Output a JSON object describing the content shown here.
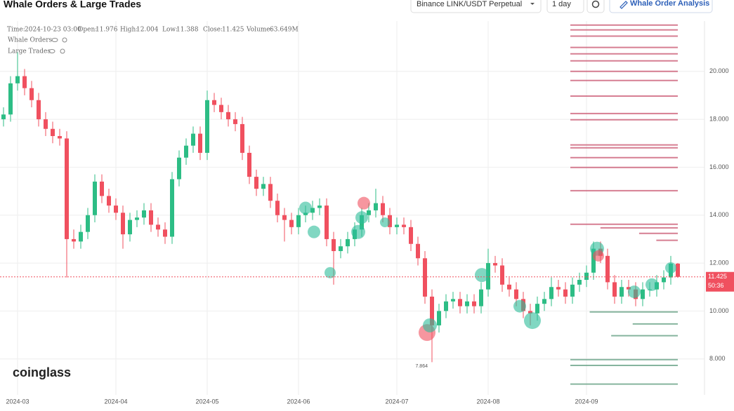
{
  "header": {
    "title": "Whale Orders & Large Trades",
    "exchange": "Binance LINK/USDT Perpetual",
    "interval": "1 day",
    "button": "Whale Order Analysis"
  },
  "chart_data": {
    "type": "candlestick",
    "info": {
      "time_label": "Time:",
      "time": "2024-10-23 03:00",
      "open_label": "Open:",
      "high_label": "High:",
      "low_label": "Low:",
      "close_label": "Close:",
      "volume_label": "Volume:",
      "volume": "63.649M"
    },
    "legend": [
      "Whale Orders",
      "Large Trades"
    ],
    "watermark": "coinglass",
    "countdown": "50:36",
    "up_color": "#2dbd85",
    "down_color": "#f0505f",
    "last_price_color": "#f0505f",
    "categories": [
      null,
      null,
      "2024-03",
      null,
      null,
      null,
      null,
      null,
      null,
      null,
      null,
      null,
      null,
      null,
      null,
      null,
      "2024-04",
      null,
      null,
      null,
      null,
      null,
      null,
      null,
      null,
      null,
      null,
      null,
      null,
      "2024-05",
      null,
      null,
      null,
      null,
      null,
      null,
      null,
      null,
      null,
      null,
      null,
      null,
      "2024-06",
      null,
      null,
      null,
      null,
      null,
      null,
      null,
      null,
      null,
      null,
      null,
      null,
      null,
      "2024-07",
      null,
      null,
      null,
      null,
      null,
      null,
      null,
      null,
      null,
      null,
      null,
      null,
      "2024-08",
      null,
      null,
      null,
      null,
      null,
      null,
      null,
      null,
      null,
      null,
      null,
      null,
      null,
      "2024-09",
      null,
      null,
      null,
      null,
      null,
      null,
      null,
      null,
      null,
      null,
      null,
      null,
      null
    ],
    "opens": [
      18.0,
      18.2,
      19.5,
      19.8,
      19.3,
      18.8,
      18.0,
      17.6,
      17.3,
      17.2,
      13.0,
      12.9,
      13.3,
      14.0,
      15.4,
      14.8,
      14.4,
      14.1,
      13.2,
      13.8,
      13.9,
      14.2,
      13.6,
      13.4,
      13.1,
      15.5,
      16.4,
      16.9,
      17.4,
      16.6,
      18.8,
      18.6,
      18.3,
      18.0,
      17.8,
      16.6,
      15.6,
      15.1,
      15.3,
      14.6,
      14.0,
      13.8,
      13.5,
      14.0,
      14.1,
      14.3,
      14.4,
      13.0,
      12.5,
      12.7,
      13.0,
      13.4,
      14.0,
      14.2,
      14.5,
      14.0,
      13.5,
      13.6,
      13.5,
      12.8,
      12.2,
      10.6,
      9.4,
      10.0,
      10.4,
      10.5,
      10.2,
      10.4,
      10.2,
      10.9,
      12.0,
      11.9,
      11.1,
      10.9,
      10.5,
      10.0,
      9.9,
      10.3,
      10.5,
      11.0,
      10.9,
      10.6,
      11.1,
      11.3,
      11.6,
      12.6,
      12.3,
      11.2,
      10.6,
      11.0,
      10.9,
      10.5,
      10.9,
      10.9,
      11.2,
      11.4,
      11.976
    ],
    "highs": [
      18.5,
      19.8,
      20.8,
      20.1,
      19.6,
      19.1,
      18.3,
      17.9,
      17.6,
      17.5,
      13.4,
      13.6,
      14.3,
      15.7,
      15.7,
      15.1,
      14.7,
      14.4,
      14.1,
      14.2,
      14.5,
      14.5,
      13.9,
      13.7,
      15.8,
      16.7,
      17.2,
      17.7,
      17.7,
      19.2,
      19.1,
      18.9,
      18.6,
      18.3,
      18.1,
      16.9,
      15.9,
      15.6,
      15.6,
      14.9,
      14.3,
      14.1,
      14.3,
      14.4,
      14.6,
      14.7,
      14.7,
      13.3,
      13.0,
      13.3,
      13.7,
      14.3,
      14.5,
      15.1,
      14.8,
      14.3,
      13.9,
      13.9,
      13.8,
      13.1,
      12.5,
      10.9,
      10.3,
      10.7,
      10.8,
      10.8,
      10.7,
      10.7,
      11.2,
      12.6,
      12.3,
      12.2,
      11.4,
      11.2,
      10.8,
      10.3,
      10.6,
      10.8,
      11.4,
      11.3,
      11.2,
      11.4,
      11.6,
      11.9,
      12.9,
      12.9,
      12.6,
      11.5,
      11.3,
      11.3,
      11.2,
      11.2,
      11.2,
      11.5,
      11.7,
      12.3,
      12.004
    ],
    "lows": [
      17.7,
      17.9,
      19.2,
      19.0,
      18.5,
      17.7,
      17.3,
      17.0,
      16.9,
      11.4,
      12.6,
      12.6,
      13.0,
      13.7,
      14.5,
      14.1,
      13.8,
      12.6,
      12.9,
      13.5,
      13.6,
      13.3,
      13.1,
      12.8,
      12.8,
      15.2,
      16.1,
      16.6,
      16.3,
      16.3,
      18.3,
      18.0,
      17.7,
      17.5,
      16.3,
      15.3,
      14.8,
      14.8,
      14.3,
      13.7,
      12.9,
      13.2,
      13.2,
      13.7,
      13.8,
      14.0,
      12.7,
      11.1,
      12.2,
      12.4,
      12.7,
      13.1,
      13.7,
      13.9,
      13.7,
      13.2,
      13.2,
      13.2,
      12.5,
      11.9,
      10.3,
      7.864,
      9.1,
      9.7,
      10.1,
      9.9,
      9.9,
      9.9,
      9.9,
      10.6,
      11.6,
      10.8,
      10.6,
      10.2,
      9.7,
      9.4,
      9.6,
      10.0,
      10.2,
      10.6,
      10.3,
      10.3,
      10.8,
      11.0,
      11.3,
      12.0,
      10.9,
      10.3,
      10.3,
      10.6,
      10.2,
      10.2,
      10.6,
      10.6,
      10.9,
      11.1,
      11.388
    ],
    "closes": [
      18.2,
      19.5,
      19.8,
      19.3,
      18.8,
      18.0,
      17.6,
      17.3,
      17.2,
      13.0,
      12.9,
      13.3,
      14.0,
      15.4,
      14.8,
      14.4,
      14.1,
      13.2,
      13.8,
      13.9,
      14.2,
      13.6,
      13.4,
      13.1,
      15.5,
      16.4,
      16.9,
      17.4,
      16.6,
      18.8,
      18.6,
      18.3,
      18.0,
      17.8,
      16.6,
      15.6,
      15.1,
      15.3,
      14.6,
      14.0,
      13.8,
      13.5,
      14.0,
      14.1,
      14.3,
      14.4,
      13.0,
      12.5,
      12.7,
      13.0,
      13.4,
      14.0,
      14.2,
      14.5,
      14.0,
      13.5,
      13.6,
      13.5,
      12.8,
      12.2,
      10.6,
      9.4,
      10.0,
      10.4,
      10.5,
      10.2,
      10.4,
      10.2,
      10.9,
      12.0,
      11.9,
      11.1,
      10.9,
      10.5,
      10.0,
      9.9,
      10.3,
      10.5,
      11.0,
      10.9,
      10.6,
      11.1,
      11.3,
      11.6,
      12.6,
      12.3,
      11.2,
      10.6,
      11.0,
      10.9,
      10.5,
      10.9,
      10.9,
      11.2,
      11.4,
      11.976,
      11.425
    ],
    "ylim": [
      6.5,
      22.1
    ],
    "yticks": [
      {
        "value": 8,
        "label": "8.000"
      },
      {
        "value": 10,
        "label": "10.000"
      },
      {
        "value": 12,
        "label": "12.000"
      },
      {
        "value": 14,
        "label": "14.000"
      },
      {
        "value": 16,
        "label": "16.000"
      },
      {
        "value": 18,
        "label": "18.000"
      },
      {
        "value": 20,
        "label": "20.000"
      }
    ],
    "grid": true,
    "whale_orders": {
      "prices": [
        21.93,
        21.73,
        21.47,
        21.0,
        20.73,
        20.44,
        20.0,
        19.62,
        18.97,
        18.24,
        17.98,
        16.93,
        16.81,
        16.4,
        15.99,
        15.02,
        13.62,
        13.47,
        13.24,
        12.95,
        9.96,
        9.46,
        8.97,
        7.97,
        7.73,
        6.95
      ],
      "sizes": [
        100,
        100,
        100,
        100,
        100,
        100,
        100,
        100,
        100,
        100,
        100,
        100,
        100,
        100,
        100,
        100,
        100,
        72,
        36,
        20,
        82,
        42,
        62,
        100,
        100,
        100
      ],
      "colors": [
        "#c9546e",
        "#c9546e",
        "#c9546e",
        "#c9546e",
        "#c9546e",
        "#c9546e",
        "#c9546e",
        "#c9546e",
        "#c9546e",
        "#c9546e",
        "#c9546e",
        "#c9546e",
        "#c9546e",
        "#c9546e",
        "#c9546e",
        "#c9546e",
        "#c9546e",
        "#c9546e",
        "#c9546e",
        "#c9546e",
        "#5e9c7e",
        "#5e9c7e",
        "#5e9c7e",
        "#5e9c7e",
        "#5e9c7e",
        "#5e9c7e"
      ]
    },
    "large_trades": {
      "x": [
        43,
        44.2,
        46.5,
        50.5,
        51.3,
        51,
        54.3,
        60.3,
        60.7,
        68.1,
        73.5,
        75.3,
        84.5,
        84.7,
        89.8,
        92.3,
        95
      ],
      "prices": [
        14.3,
        13.3,
        11.6,
        13.3,
        14.5,
        13.9,
        13.7,
        9.1,
        9.4,
        11.5,
        10.2,
        9.6,
        12.6,
        12.3,
        10.8,
        11.1,
        11.8
      ],
      "sizes": [
        9,
        9,
        8,
        10,
        9,
        9,
        7,
        12,
        10,
        10,
        9,
        12,
        10,
        8,
        9,
        9,
        8
      ],
      "colors": [
        "#2dbd99",
        "#2dbd99",
        "#2dbd99",
        "#2dbd99",
        "#f0505f",
        "#2dbd99",
        "#2dbd99",
        "#f0505f",
        "#2dbd99",
        "#2dbd99",
        "#2dbd99",
        "#2dbd99",
        "#2dbd99",
        "#f0505f",
        "#2dbd99",
        "#2dbd99",
        "#2dbd99"
      ]
    }
  }
}
